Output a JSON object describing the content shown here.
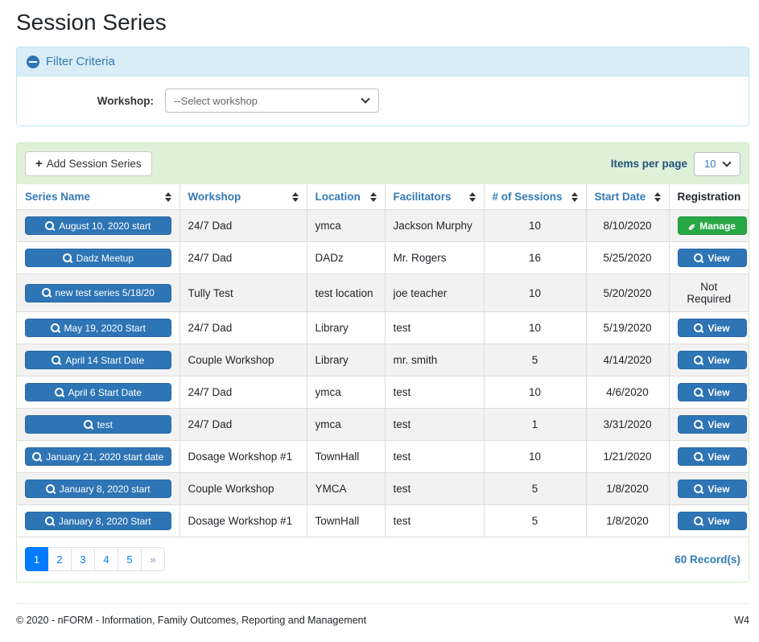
{
  "page": {
    "title": "Session Series"
  },
  "filter": {
    "title": "Filter Criteria",
    "collapse_icon": "circle-minus",
    "workshop_label": "Workshop:",
    "workshop_selected": "--Select workshop"
  },
  "toolbar": {
    "add_button_label": "Add Session Series",
    "items_per_page_label": "Items per page",
    "page_size": "10"
  },
  "table": {
    "columns": [
      {
        "label": "Series Name",
        "key": "series_name",
        "sortable": true,
        "align": "left"
      },
      {
        "label": "Workshop",
        "key": "workshop",
        "sortable": true,
        "align": "left"
      },
      {
        "label": "Location",
        "key": "location",
        "sortable": true,
        "align": "left"
      },
      {
        "label": "Facilitators",
        "key": "facilitators",
        "sortable": true,
        "align": "left"
      },
      {
        "label": "# of Sessions",
        "key": "sessions",
        "sortable": true,
        "align": "center"
      },
      {
        "label": "Start Date",
        "key": "start_date",
        "sortable": true,
        "align": "center"
      },
      {
        "label": "Registration",
        "key": "registration",
        "sortable": false,
        "align": "center"
      }
    ],
    "rows": [
      {
        "series_name": "August 10, 2020 start",
        "workshop": "24/7 Dad",
        "location": "ymca",
        "facilitators": "Jackson Murphy",
        "sessions": "10",
        "start_date": "8/10/2020",
        "registration": {
          "type": "manage",
          "label": "Manage"
        }
      },
      {
        "series_name": "Dadz Meetup",
        "workshop": "24/7 Dad",
        "location": "DADz",
        "facilitators": "Mr. Rogers",
        "sessions": "16",
        "start_date": "5/25/2020",
        "registration": {
          "type": "view",
          "label": "View"
        }
      },
      {
        "series_name": "new test series 5/18/20",
        "workshop": "Tully Test",
        "location": "test location",
        "facilitators": "joe teacher",
        "sessions": "10",
        "start_date": "5/20/2020",
        "registration": {
          "type": "text",
          "label": "Not Required"
        }
      },
      {
        "series_name": "May 19, 2020 Start",
        "workshop": "24/7 Dad",
        "location": "Library",
        "facilitators": "test",
        "sessions": "10",
        "start_date": "5/19/2020",
        "registration": {
          "type": "view",
          "label": "View"
        }
      },
      {
        "series_name": "April 14 Start Date",
        "workshop": "Couple Workshop",
        "location": "Library",
        "facilitators": "mr. smith",
        "sessions": "5",
        "start_date": "4/14/2020",
        "registration": {
          "type": "view",
          "label": "View"
        }
      },
      {
        "series_name": "April 6 Start Date",
        "workshop": "24/7 Dad",
        "location": "ymca",
        "facilitators": "test",
        "sessions": "10",
        "start_date": "4/6/2020",
        "registration": {
          "type": "view",
          "label": "View"
        }
      },
      {
        "series_name": "test",
        "workshop": "24/7 Dad",
        "location": "ymca",
        "facilitators": "test",
        "sessions": "1",
        "start_date": "3/31/2020",
        "registration": {
          "type": "view",
          "label": "View"
        }
      },
      {
        "series_name": "January 21, 2020 start date",
        "workshop": "Dosage Workshop #1",
        "location": "TownHall",
        "facilitators": "test",
        "sessions": "10",
        "start_date": "1/21/2020",
        "registration": {
          "type": "view",
          "label": "View"
        }
      },
      {
        "series_name": "January 8, 2020 start",
        "workshop": "Couple Workshop",
        "location": "YMCA",
        "facilitators": "test",
        "sessions": "5",
        "start_date": "1/8/2020",
        "registration": {
          "type": "view",
          "label": "View"
        }
      },
      {
        "series_name": "January 8, 2020 Start",
        "workshop": "Dosage Workshop #1",
        "location": "TownHall",
        "facilitators": "test",
        "sessions": "5",
        "start_date": "1/8/2020",
        "registration": {
          "type": "view",
          "label": "View"
        }
      }
    ]
  },
  "pagination": {
    "pages": [
      "1",
      "2",
      "3",
      "4",
      "5",
      "»"
    ],
    "active_page": "1",
    "records_label": "60 Record(s)"
  },
  "footer": {
    "copyright": "© 2020 - nFORM - Information, Family Outcomes, Reporting and Management",
    "environment": "W4"
  },
  "colors": {
    "primary_button_blue": "#2e75b6",
    "link_blue": "#337ab7",
    "success_green": "#28a745",
    "active_page_blue": "#007bff",
    "filter_header_bg": "#d9edf7",
    "toolbar_bg": "#dff0d8"
  }
}
